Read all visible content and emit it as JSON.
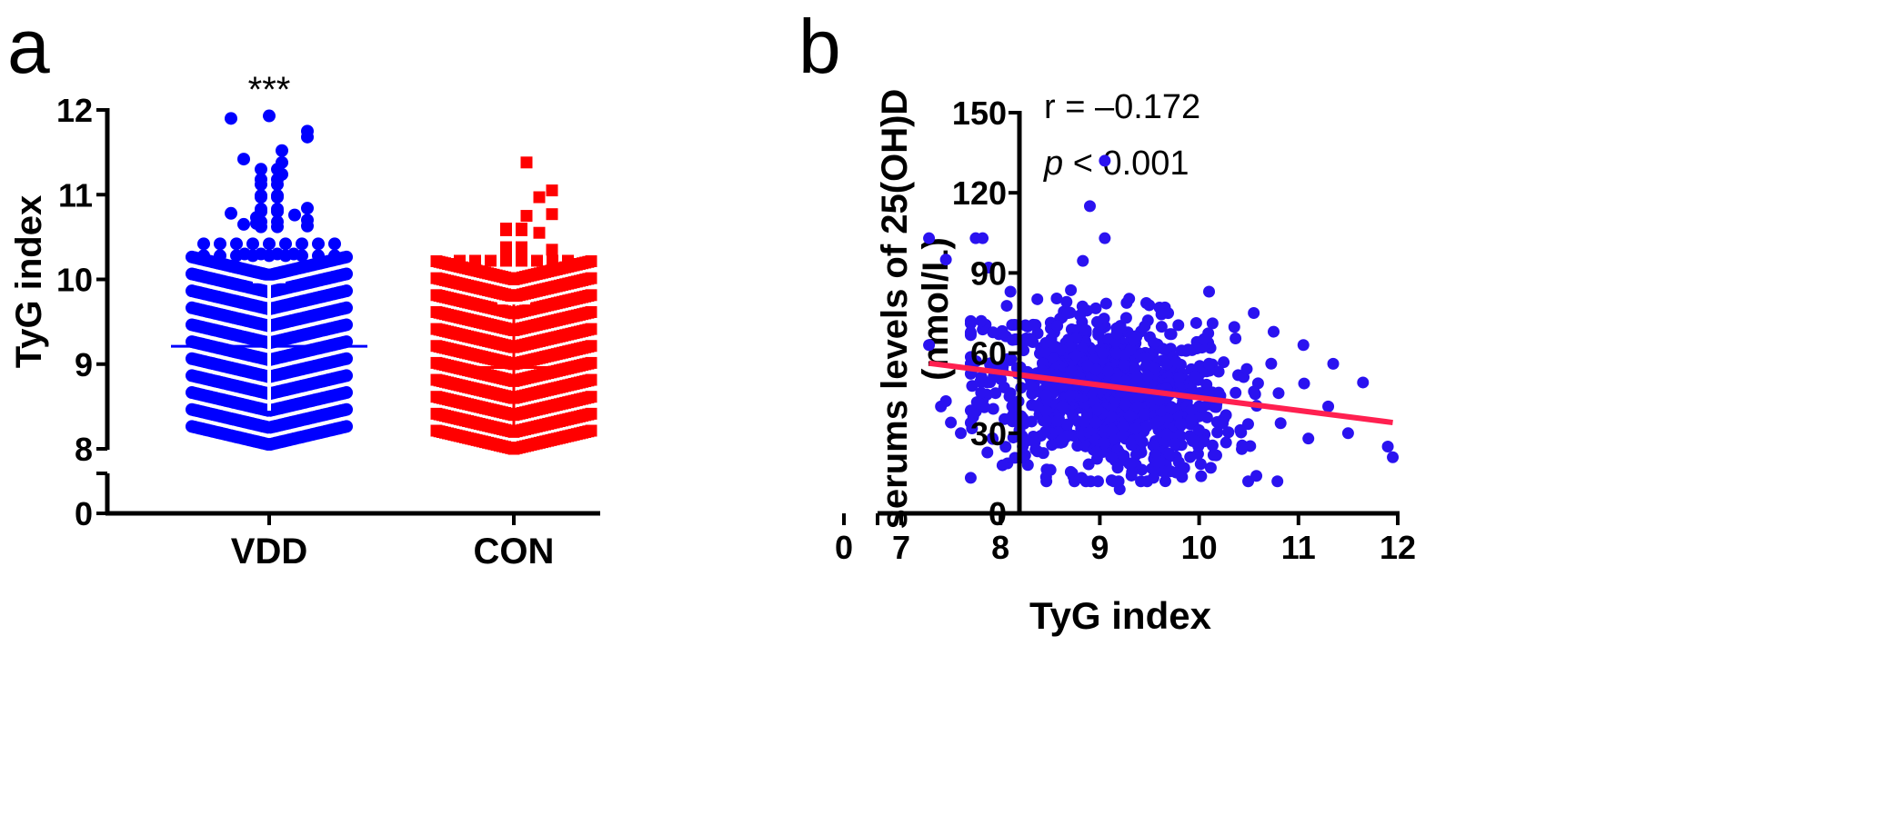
{
  "chart_data": [
    {
      "panel_label": "a",
      "type": "scatter",
      "subtype": "dot-plot (beeswarm) with mean and SD",
      "ylabel": "TyG index",
      "xlabel": "",
      "categories": [
        "VDD",
        "CON"
      ],
      "yticks": [
        "0",
        "8",
        "9",
        "10",
        "11",
        "12"
      ],
      "ylim": [
        8,
        12
      ],
      "axis_break": "between 0 and 8",
      "significance": "***",
      "series": [
        {
          "name": "VDD",
          "marker": "circle",
          "color": "#0000ff",
          "mean": 9.21,
          "sd_low": 8.45,
          "sd_high": 9.97,
          "dense_bands": [
            8.2,
            8.4,
            8.6,
            8.8,
            9.0,
            9.2,
            9.4,
            9.6,
            9.8,
            10.0,
            10.2
          ],
          "dense_band_count": 60,
          "points": [
            10.28,
            10.28,
            10.28,
            10.28,
            10.28,
            10.28,
            10.28,
            10.28,
            10.28,
            10.3,
            10.3,
            10.3,
            10.3,
            10.42,
            10.42,
            10.42,
            10.42,
            10.42,
            10.42,
            10.42,
            10.42,
            10.42,
            10.62,
            10.62,
            10.63,
            10.65,
            10.66,
            10.68,
            10.68,
            10.7,
            10.73,
            10.76,
            10.78,
            10.8,
            10.8,
            10.83,
            10.83,
            10.84,
            10.97,
            10.99,
            10.99,
            10.97,
            11.12,
            11.12,
            11.18,
            11.18,
            11.24,
            11.3,
            11.3,
            11.38,
            11.42,
            11.52,
            11.68,
            11.75,
            11.9,
            11.93
          ],
          "color_hex": "#0000ff"
        },
        {
          "name": "CON",
          "marker": "square",
          "color": "#ff0000",
          "mean": 8.96,
          "sd_low": 8.2,
          "sd_high": 9.72,
          "dense_bands": [
            8.15,
            8.35,
            8.55,
            8.75,
            8.95,
            9.15,
            9.35,
            9.55,
            9.75,
            9.95,
            10.15
          ],
          "dense_band_count": 55,
          "points": [
            10.22,
            10.22,
            10.22,
            10.22,
            10.22,
            10.22,
            10.22,
            10.22,
            10.32,
            10.32,
            10.35,
            10.38,
            10.38,
            10.55,
            10.58,
            10.58,
            10.6,
            10.6,
            10.75,
            10.77,
            10.97,
            11.05,
            11.38
          ]
        }
      ]
    },
    {
      "panel_label": "b",
      "type": "scatter",
      "xlabel": "TyG index",
      "ylabel": "serums levels of 25(OH)D",
      "ylabel_line2": "(nmol/L)",
      "xticks": [
        "0",
        "7",
        "8",
        "9",
        "10",
        "11",
        "12"
      ],
      "yticks": [
        "0",
        "30",
        "60",
        "90",
        "120",
        "150"
      ],
      "xlim": [
        7,
        12
      ],
      "ylim": [
        0,
        150
      ],
      "axis_break": "x-axis between 0 and 7",
      "annotation_r": "r = –0.172",
      "annotation_p_italic": "p",
      "annotation_p_rest": " < 0.001",
      "point_color": "#2a12f0",
      "line_color": "#ff2050",
      "regression": {
        "x": [
          7.28,
          11.95
        ],
        "y": [
          56.2,
          34.0
        ]
      },
      "cloud": {
        "n": 1000,
        "mean_x": 9.1,
        "sd_x": 0.62,
        "mean_y": 45,
        "sd_y": 15,
        "r": -0.172
      },
      "notable_points": {
        "x": [
          7.28,
          7.75,
          7.82,
          8.9,
          9.05,
          9.05,
          7.45,
          7.88,
          7.28,
          7.45,
          7.4,
          11.65,
          11.9,
          11.95,
          11.35,
          11.05,
          10.55,
          10.75,
          10.1,
          9.2,
          7.5,
          7.6,
          8.02,
          11.5,
          11.3,
          7.7,
          8.1,
          10.8,
          11.1,
          9.85,
          7.95
        ],
        "y": [
          103,
          103,
          103,
          115,
          132,
          103,
          95,
          92,
          63,
          42,
          40,
          49,
          25,
          21,
          56,
          63,
          75,
          68,
          83,
          9,
          34,
          30,
          18,
          30,
          40,
          72,
          83,
          45,
          28,
          17,
          45
        ]
      }
    }
  ]
}
